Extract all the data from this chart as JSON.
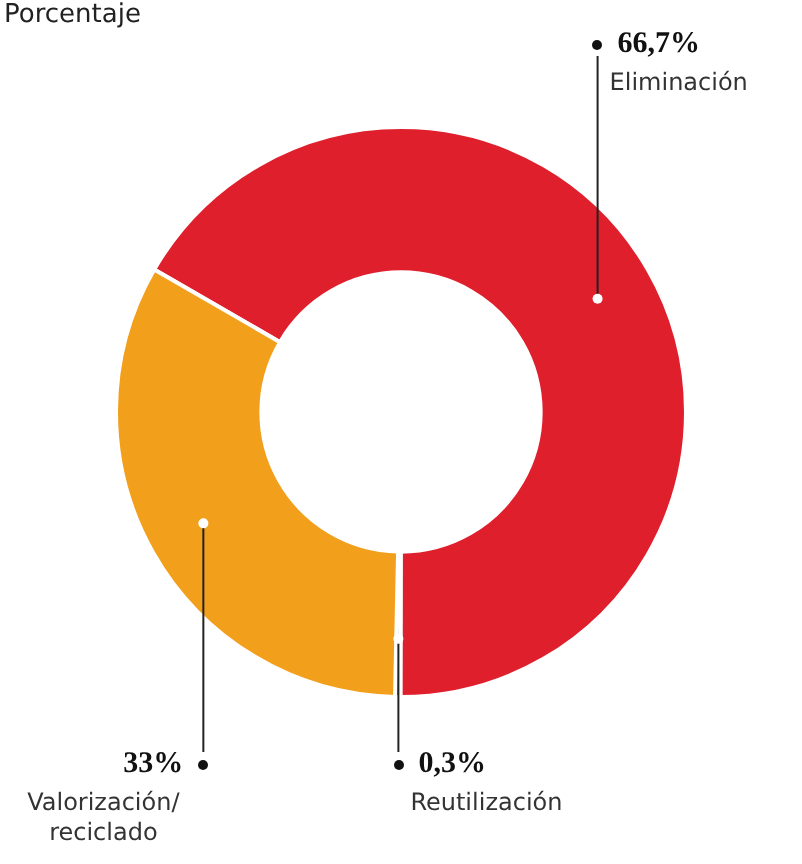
{
  "chart_data": {
    "type": "donut",
    "title": "Porcentaje",
    "categories": [
      "Eliminación",
      "Reutilización",
      "Valorización/ reciclado"
    ],
    "values": [
      66.7,
      0.3,
      33
    ],
    "colors": [
      "#e01f2d",
      "#1d7fb8",
      "#f29f1c"
    ],
    "value_labels": [
      "66,7%",
      "0,3%",
      "33%"
    ],
    "legend": false
  }
}
